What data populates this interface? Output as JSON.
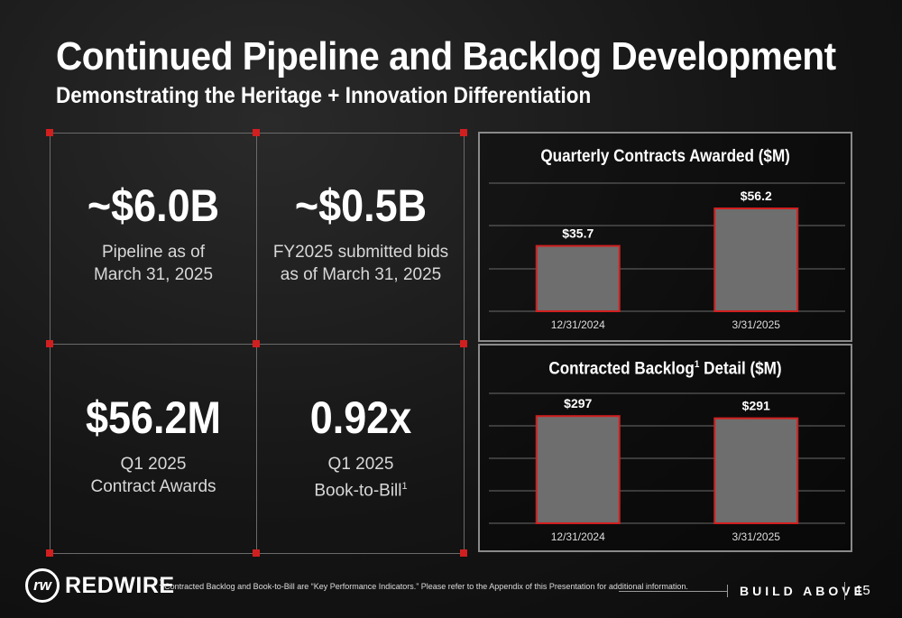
{
  "header": {
    "title": "Continued Pipeline and Backlog Development",
    "subtitle": "Demonstrating the Heritage + Innovation Differentiation"
  },
  "kpis": [
    {
      "value": "~$6.0B",
      "label": "Pipeline as of\nMarch 31, 2025"
    },
    {
      "value": "~$0.5B",
      "label": "FY2025 submitted bids\nas of March 31, 2025"
    },
    {
      "value": "$56.2M",
      "label": "Q1 2025\nContract Awards"
    },
    {
      "value": "0.92x",
      "label": "Q1 2025\nBook-to-Bill",
      "footnote_mark": "1"
    }
  ],
  "chart_data": [
    {
      "type": "bar",
      "title": "Quarterly Contracts Awarded ($M)",
      "categories": [
        "12/31/2024",
        "3/31/2025"
      ],
      "values": [
        35.7,
        56.2
      ],
      "value_labels": [
        "$35.7",
        "$56.2"
      ],
      "ylim": [
        0,
        70
      ],
      "grid": true,
      "bar_color": "#6e6e6e",
      "bar_border_color": "#d11f1f"
    },
    {
      "type": "bar",
      "title": "Contracted Backlog",
      "title_sup": "1",
      "title_suffix": " Detail ($M)",
      "categories": [
        "12/31/2024",
        "3/31/2025"
      ],
      "values": [
        297,
        291
      ],
      "value_labels": [
        "$297",
        "$291"
      ],
      "ylim": [
        0,
        360
      ],
      "grid": true,
      "bar_color": "#6e6e6e",
      "bar_border_color": "#d11f1f"
    }
  ],
  "footer": {
    "brand": "REDWIRE",
    "footnote_mark": "1",
    "footnote": "Contracted Backlog and Book-to-Bill are “Key Performance Indicators.”  Please refer to the Appendix of this Presentation for additional information.",
    "tagline": "BUILD ABOVE",
    "page_number": "15"
  },
  "colors": {
    "accent": "#d11f1f",
    "grid_line": "#6a6a6a",
    "panel_border": "#8a8a8a"
  }
}
